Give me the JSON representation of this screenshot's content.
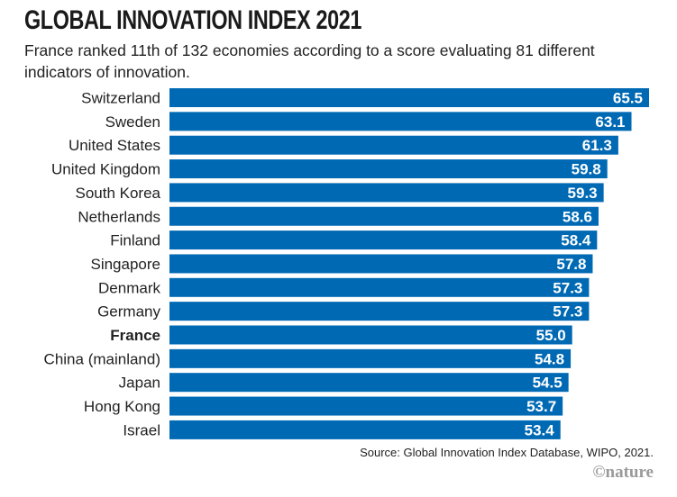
{
  "chart_data": {
    "type": "bar",
    "orientation": "horizontal",
    "title": "GLOBAL INNOVATION INDEX 2021",
    "subtitle": "France ranked 11th of 132 economies according to a score evaluating 81 different indicators of innovation.",
    "xlabel": "",
    "ylabel": "",
    "xlim": [
      0,
      65.5
    ],
    "grid": false,
    "legend": "none",
    "bar_color": "#0069b4",
    "label_color": "#ffffff",
    "highlight": "France",
    "categories": [
      "Switzerland",
      "Sweden",
      "United States",
      "United Kingdom",
      "South Korea",
      "Netherlands",
      "Finland",
      "Singapore",
      "Denmark",
      "Germany",
      "France",
      "China (mainland)",
      "Japan",
      "Hong Kong",
      "Israel"
    ],
    "values": [
      65.5,
      63.1,
      61.3,
      59.8,
      59.3,
      58.6,
      58.4,
      57.8,
      57.3,
      57.3,
      55.0,
      54.8,
      54.5,
      53.7,
      53.4
    ],
    "value_labels": [
      "65.5",
      "63.1",
      "61.3",
      "59.8",
      "59.3",
      "58.6",
      "58.4",
      "57.8",
      "57.3",
      "57.3",
      "55.0",
      "54.8",
      "54.5",
      "53.7",
      "53.4"
    ]
  },
  "footer": {
    "source": "Source: Global Innovation Index Database, WIPO, 2021.",
    "credit": "©nature"
  }
}
